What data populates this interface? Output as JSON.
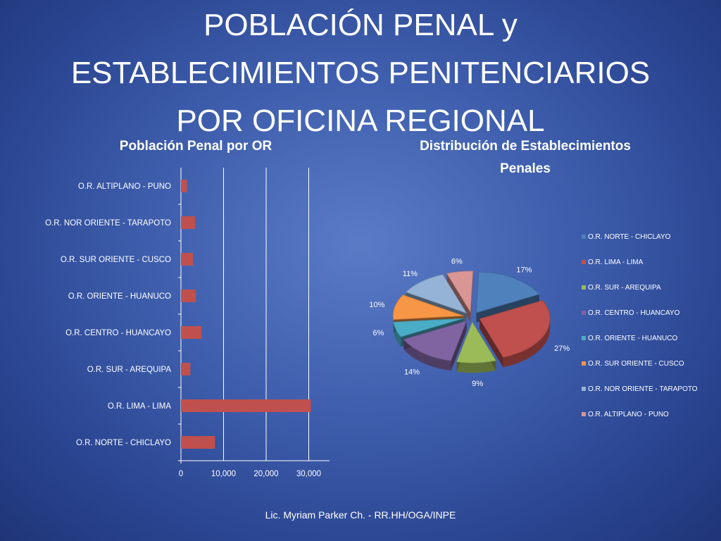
{
  "slide": {
    "title_lines": [
      "POBLACIÓN PENAL y",
      "ESTABLECIMIENTOS PENITENCIARIOS",
      "POR OFICINA REGIONAL"
    ],
    "footer": "Lic. Myriam Parker Ch. - RR.HH/OGA/INPE"
  },
  "chart_data": [
    {
      "type": "bar",
      "orientation": "horizontal",
      "title": "Población Penal por OR",
      "categories": [
        "O.R. NORTE - CHICLAYO",
        "O.R. LIMA - LIMA",
        "O.R. SUR - AREQUIPA",
        "O.R. CENTRO - HUANCAYO",
        "O.R. ORIENTE - HUANUCO",
        "O.R. SUR ORIENTE - CUSCO",
        "O.R. NOR ORIENTE - TARAPOTO",
        "O.R. ALTIPLANO - PUNO"
      ],
      "values": [
        8000,
        30500,
        2200,
        4800,
        3500,
        2800,
        3300,
        1400
      ],
      "x_ticks": [
        "0",
        "10,000",
        "20,000",
        "30,000"
      ],
      "xlim": [
        0,
        35000
      ],
      "grid": true,
      "bar_color": "#c0504d"
    },
    {
      "type": "pie",
      "style": "3d-exploded",
      "title": "Distribución de Establecimientos Penales",
      "labels": [
        "O.R. NORTE - CHICLAYO",
        "O.R. LIMA - LIMA",
        "O.R. SUR - AREQUIPA",
        "O.R. CENTRO - HUANCAYO",
        "O.R. ORIENTE - HUANUCO",
        "O.R. SUR ORIENTE - CUSCO",
        "O.R. NOR ORIENTE - TARAPOTO",
        "O.R. ALTIPLANO - PUNO"
      ],
      "values": [
        17,
        27,
        9,
        14,
        6,
        10,
        11,
        6
      ],
      "value_labels": [
        "17%",
        "27%",
        "9%",
        "14%",
        "6%",
        "10%",
        "11%",
        "6%"
      ],
      "colors": [
        "#4f81bd",
        "#c0504d",
        "#9bbb59",
        "#8064a2",
        "#4bacc6",
        "#f79646",
        "#95b3d7",
        "#d99694"
      ],
      "legend_position": "right"
    }
  ]
}
